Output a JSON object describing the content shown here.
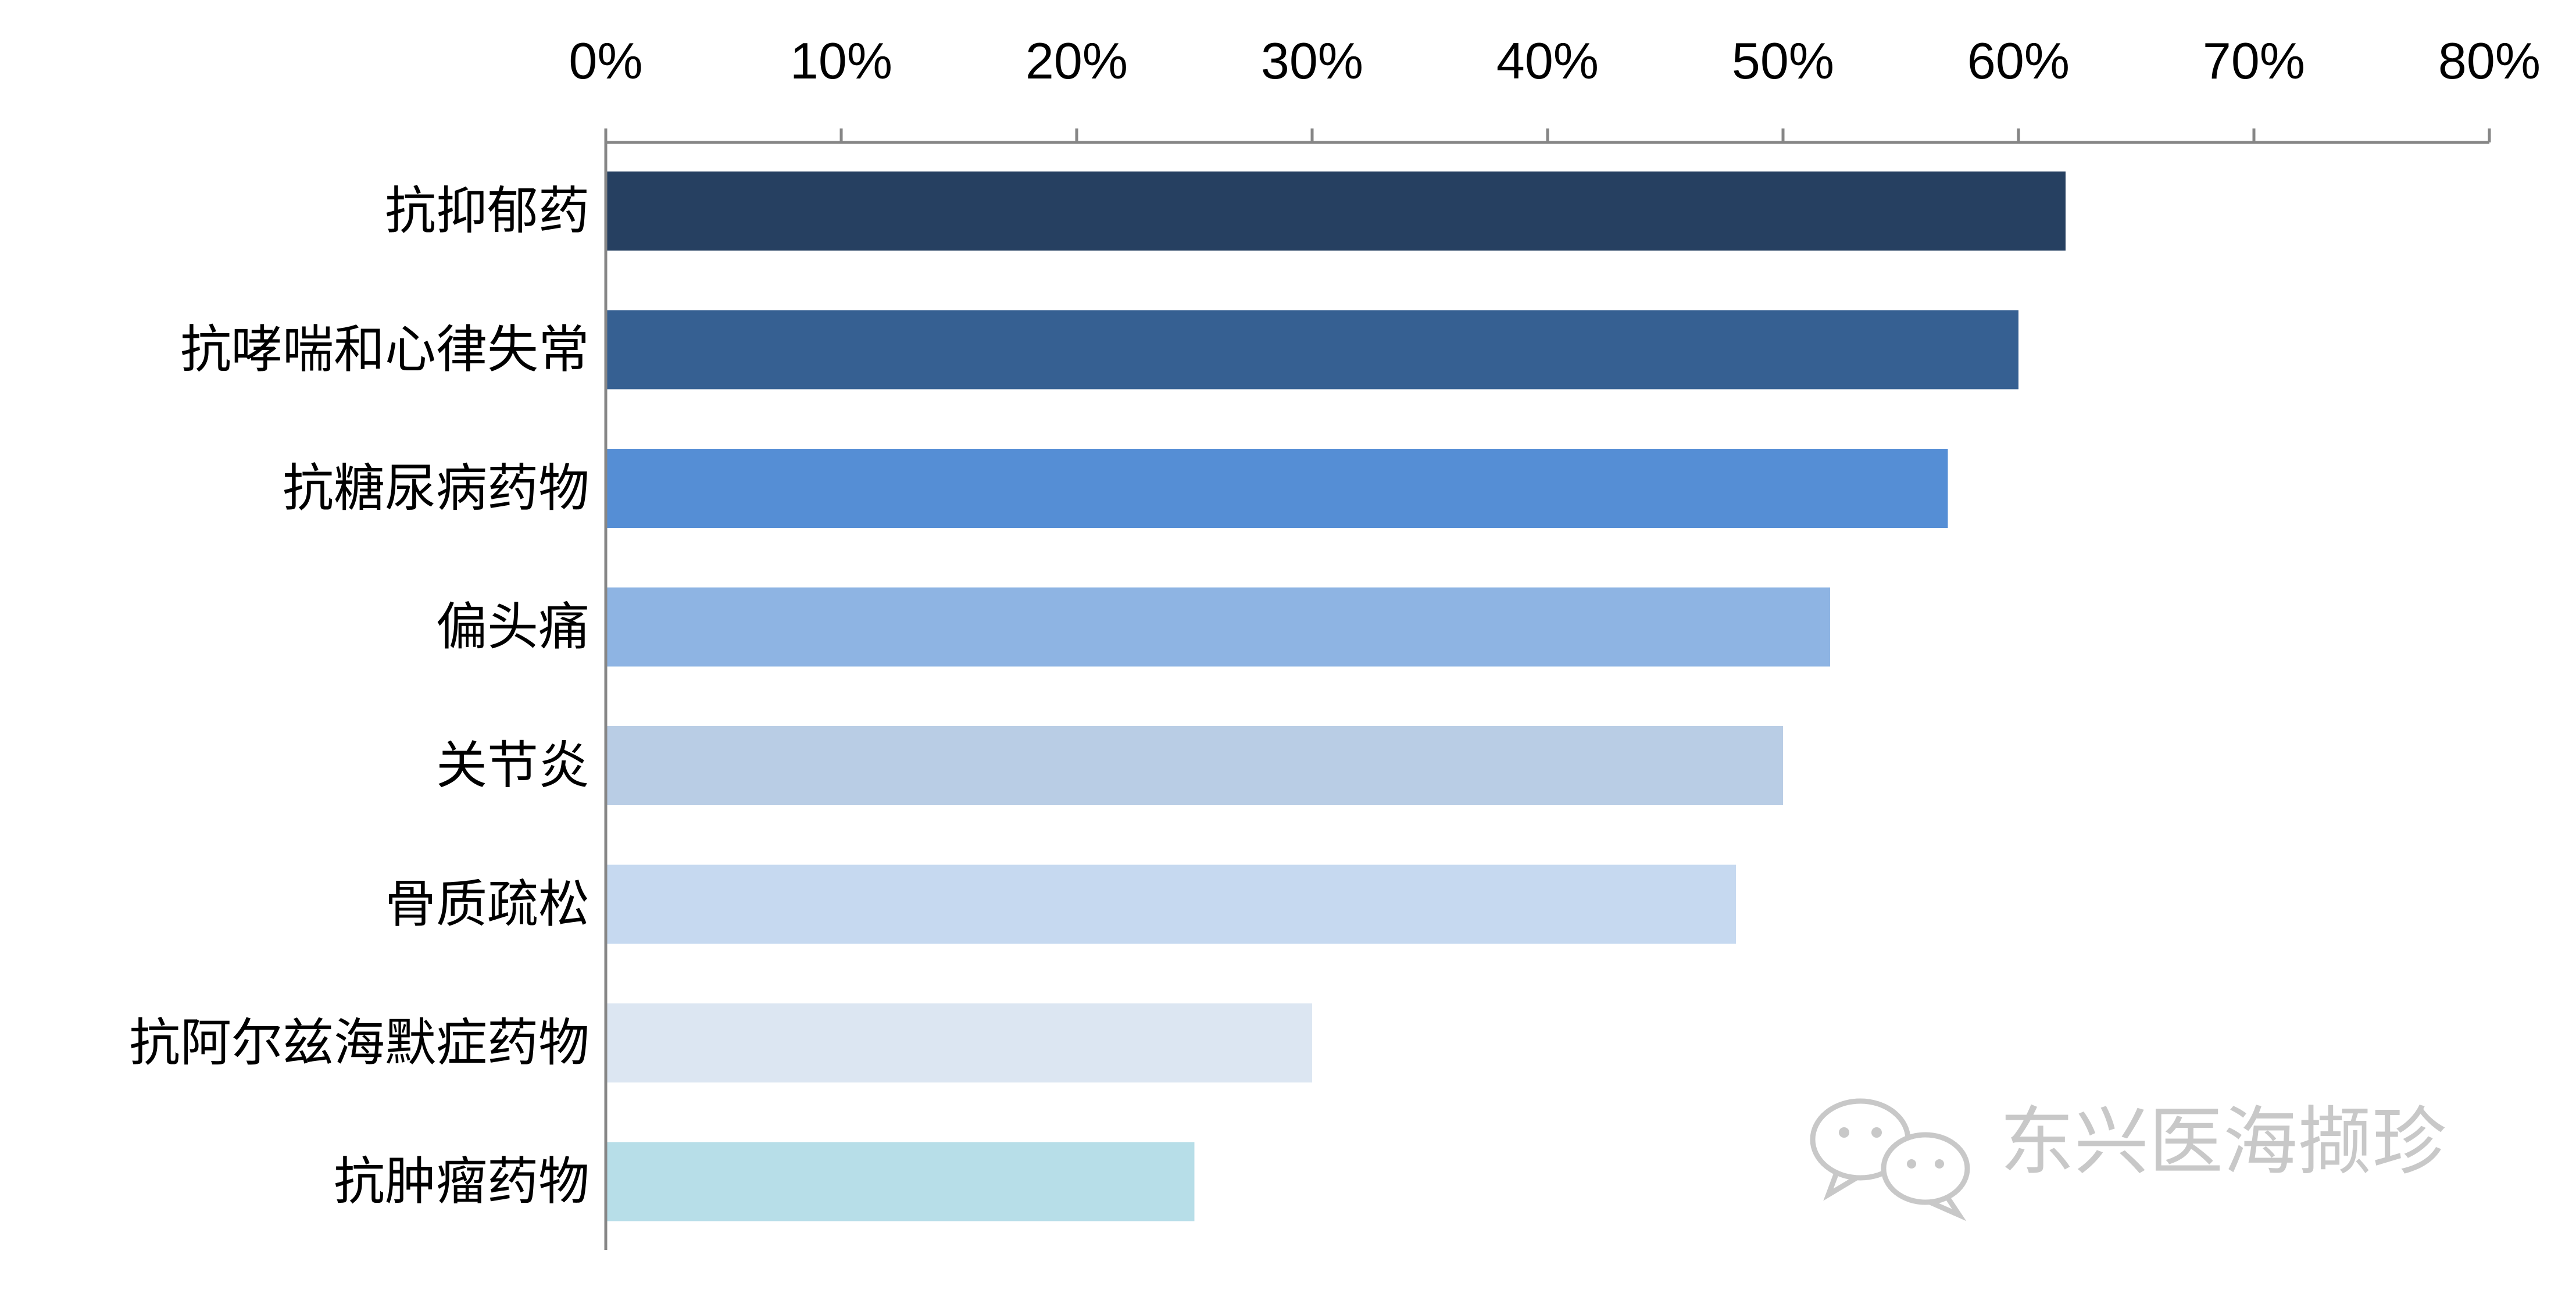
{
  "chart_data": {
    "type": "bar",
    "orientation": "horizontal",
    "categories": [
      "抗抑郁药",
      "抗哮喘和心律失常",
      "抗糖尿病药物",
      "偏头痛",
      "关节炎",
      "骨质疏松",
      "抗阿尔兹海默症药物",
      "抗肿瘤药物"
    ],
    "values": [
      62,
      60,
      57,
      52,
      50,
      48,
      30,
      25
    ],
    "bar_colors": [
      "#264061",
      "#366092",
      "#558ED5",
      "#8EB4E3",
      "#B9CDE5",
      "#C6D9F0",
      "#DCE6F2",
      "#B7DEE8"
    ],
    "xlim": [
      0,
      80
    ],
    "x_ticks": [
      0,
      10,
      20,
      30,
      40,
      50,
      60,
      70,
      80
    ],
    "x_tick_labels": [
      "0%",
      "10%",
      "20%",
      "30%",
      "40%",
      "50%",
      "60%",
      "70%",
      "80%"
    ],
    "x_axis_position": "top",
    "grid": false,
    "title": "",
    "xlabel": "",
    "ylabel": ""
  },
  "watermark": {
    "text": "东兴医海撷珍",
    "icon": "wechat-icon"
  }
}
